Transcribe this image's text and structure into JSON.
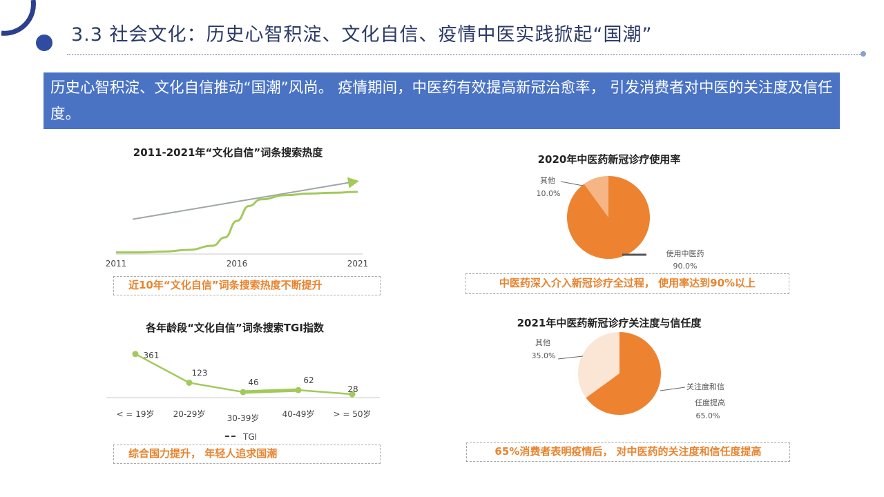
{
  "header": {
    "title": "3.3 社会文化：历史心智积淀、文化自信、疫情中医实践掀起“国潮”"
  },
  "banner": {
    "text": "历史心智积淀、文化自信推动“国潮”风尚。  疫情期间，中医药有效提高新冠治愈率， 引发消费者对中医的关注度及信任度。"
  },
  "colors": {
    "banner_blue": "#4a73c4",
    "title_navy": "#2b3a67",
    "accent_orange": "#e8832e",
    "pie_orange": "#ed8330",
    "pie_light": "#f5b584",
    "pie_pale": "#fbe5d5",
    "line_green": "#a3c95b",
    "trend_gray": "#a0a6a8"
  },
  "captions": {
    "search_heat": "近10年“文化自信”词条搜索热度不断提升",
    "tgi": "综合国力提升， 年轻人追求国潮",
    "usage": "中医药深入介入新冠诊疗全过程， 使用率达到90%以上",
    "trust": "65%消费者表明疫情后， 对中医药的关注度和信任度提高"
  },
  "chart_data": [
    {
      "type": "line",
      "title": "2011-2021年“文化自信”词条搜索热度",
      "x_ticks": [
        "2011",
        "2016",
        "2021"
      ],
      "series": [
        {
          "role": "trend-arrow",
          "x": [
            2011,
            2021
          ],
          "values": [
            0.42,
            0.88
          ]
        },
        {
          "role": "search-heat",
          "x": [
            2011,
            2012,
            2013,
            2014,
            2015,
            2015.5,
            2016,
            2016.5,
            2017,
            2018,
            2019,
            2020,
            2021
          ],
          "values": [
            0.02,
            0.02,
            0.03,
            0.05,
            0.1,
            0.2,
            0.4,
            0.58,
            0.66,
            0.71,
            0.73,
            0.74,
            0.75
          ]
        }
      ],
      "ylim": [
        0,
        1
      ],
      "grid": false
    },
    {
      "type": "line",
      "title": "各年龄段“文化自信”词条搜索TGI指数",
      "categories": [
        "< = 19岁",
        "20-29岁",
        "30-39岁",
        "40-49岁",
        "> = 50岁"
      ],
      "series": [
        {
          "name": "TGI",
          "values": [
            361,
            123,
            46,
            62,
            28
          ]
        }
      ],
      "data_labels": [
        "361",
        "123",
        "46",
        "62",
        "28"
      ],
      "legend": "bottom"
    },
    {
      "type": "pie",
      "title": "2020年中医药新冠诊疗使用率",
      "slices": [
        {
          "label": "使用中医药",
          "value": 90.0,
          "value_label": "90.0%"
        },
        {
          "label": "其他",
          "value": 10.0,
          "value_label": "10.0%"
        }
      ]
    },
    {
      "type": "pie",
      "title": "2021年中医药新冠诊疗关注度与信任度",
      "slices": [
        {
          "label_lines": [
            "关注度和信",
            "任度提高"
          ],
          "value": 65.0,
          "value_label": "65.0%"
        },
        {
          "label_lines": [
            "其他"
          ],
          "value": 35.0,
          "value_label": "35.0%"
        }
      ]
    }
  ]
}
